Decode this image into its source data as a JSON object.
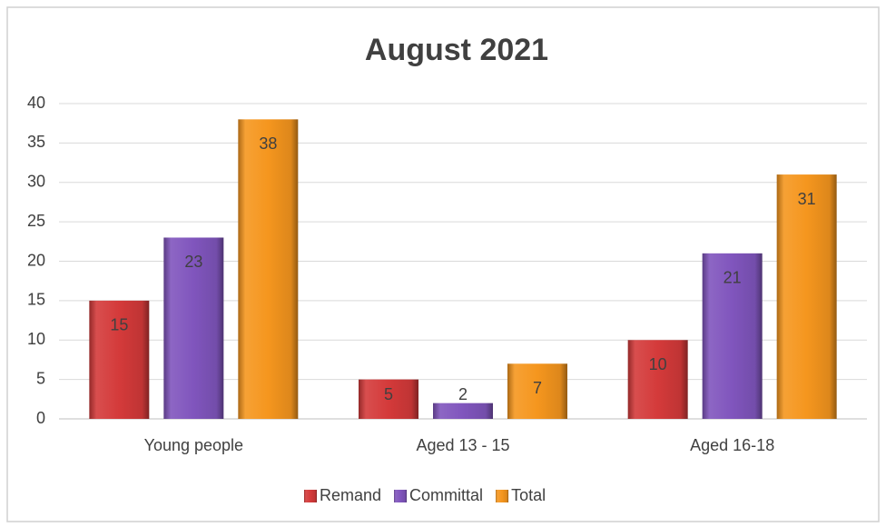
{
  "chart_data": {
    "type": "bar",
    "title": "August 2021",
    "categories": [
      "Young people",
      "Aged 13 - 15",
      "Aged 16-18"
    ],
    "series": [
      {
        "name": "Remand",
        "color": "#d43a3a",
        "values": [
          15,
          5,
          10
        ]
      },
      {
        "name": "Committal",
        "color": "#8055bd",
        "values": [
          23,
          2,
          21
        ]
      },
      {
        "name": "Total",
        "color": "#f5961e",
        "values": [
          38,
          7,
          31
        ]
      }
    ],
    "ylim": [
      0,
      40
    ],
    "yticks": [
      0,
      5,
      10,
      15,
      20,
      25,
      30,
      35,
      40
    ],
    "grid": true,
    "legend": "bottom"
  }
}
